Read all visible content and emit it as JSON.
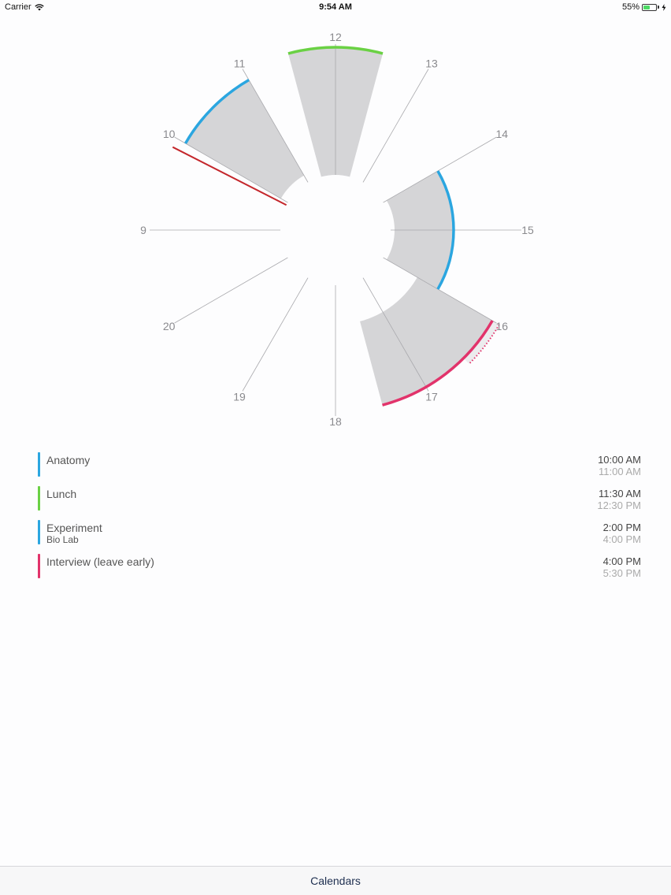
{
  "status_bar": {
    "carrier": "Carrier",
    "time": "9:54 AM",
    "battery": "55%",
    "icons": [
      "wifi-icon",
      "battery-icon",
      "charging-icon"
    ]
  },
  "clock": {
    "hour_labels": [
      "9",
      "10",
      "11",
      "12",
      "13",
      "14",
      "15",
      "16",
      "17",
      "18",
      "19",
      "20"
    ],
    "current_time_hour": 9.9
  },
  "events": [
    {
      "title": "Anatomy",
      "subtitle": "",
      "start": "10:00 AM",
      "end": "11:00 AM",
      "color": "#2ba6e0"
    },
    {
      "title": "Lunch",
      "subtitle": "",
      "start": "11:30 AM",
      "end": "12:30 PM",
      "color": "#6ad144"
    },
    {
      "title": "Experiment",
      "subtitle": "Bio Lab",
      "start": "2:00 PM",
      "end": "4:00 PM",
      "color": "#2ba6e0"
    },
    {
      "title": "Interview (leave early)",
      "subtitle": "",
      "start": "4:00 PM",
      "end": "5:30 PM",
      "color": "#e2336b"
    }
  ],
  "tab_bar": {
    "calendars_label": "Calendars"
  },
  "colors": {
    "current_time": "#c4262b",
    "sector_fill": "#d5d5d7",
    "sector_light": "#ececee"
  }
}
